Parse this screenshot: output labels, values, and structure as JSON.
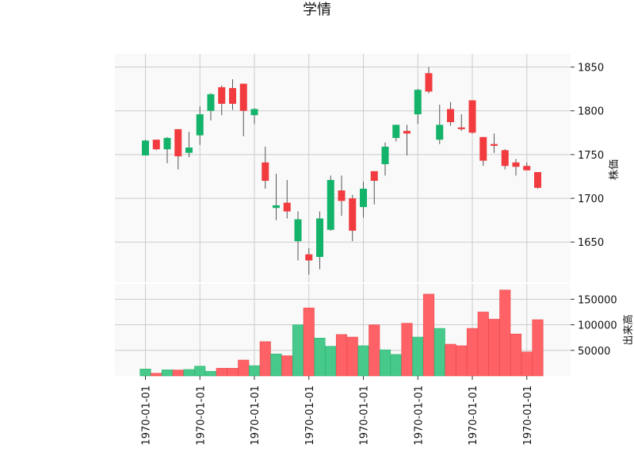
{
  "chart_data": {
    "type": "candlestick",
    "title": "学情",
    "price_ylabel": "株価",
    "volume_ylabel": "出来高",
    "up_color": "#13b36a",
    "down_color": "#f23b3f",
    "ohlc": [
      {
        "open": 1749,
        "high": 1767,
        "low": 1749,
        "close": 1766
      },
      {
        "open": 1767,
        "high": 1767,
        "low": 1755,
        "close": 1756
      },
      {
        "open": 1756,
        "high": 1770,
        "low": 1740,
        "close": 1769
      },
      {
        "open": 1779,
        "high": 1779,
        "low": 1733,
        "close": 1748
      },
      {
        "open": 1752,
        "high": 1776,
        "low": 1747,
        "close": 1758
      },
      {
        "open": 1772,
        "high": 1805,
        "low": 1761,
        "close": 1796
      },
      {
        "open": 1800,
        "high": 1820,
        "low": 1789,
        "close": 1819
      },
      {
        "open": 1827,
        "high": 1829,
        "low": 1795,
        "close": 1808
      },
      {
        "open": 1826,
        "high": 1836,
        "low": 1801,
        "close": 1808
      },
      {
        "open": 1831,
        "high": 1831,
        "low": 1771,
        "close": 1800
      },
      {
        "open": 1795,
        "high": 1803,
        "low": 1785,
        "close": 1802
      },
      {
        "open": 1741,
        "high": 1759,
        "low": 1711,
        "close": 1720
      },
      {
        "open": 1689,
        "high": 1728,
        "low": 1675,
        "close": 1692
      },
      {
        "open": 1695,
        "high": 1721,
        "low": 1677,
        "close": 1685
      },
      {
        "open": 1651,
        "high": 1685,
        "low": 1629,
        "close": 1676
      },
      {
        "open": 1636,
        "high": 1643,
        "low": 1613,
        "close": 1629
      },
      {
        "open": 1633,
        "high": 1685,
        "low": 1619,
        "close": 1677
      },
      {
        "open": 1664,
        "high": 1726,
        "low": 1663,
        "close": 1721
      },
      {
        "open": 1709,
        "high": 1726,
        "low": 1680,
        "close": 1697
      },
      {
        "open": 1700,
        "high": 1704,
        "low": 1651,
        "close": 1663
      },
      {
        "open": 1690,
        "high": 1719,
        "low": 1678,
        "close": 1711
      },
      {
        "open": 1731,
        "high": 1731,
        "low": 1693,
        "close": 1720
      },
      {
        "open": 1739,
        "high": 1764,
        "low": 1726,
        "close": 1759
      },
      {
        "open": 1769,
        "high": 1784,
        "low": 1765,
        "close": 1784
      },
      {
        "open": 1777,
        "high": 1784,
        "low": 1749,
        "close": 1774
      },
      {
        "open": 1796,
        "high": 1825,
        "low": 1785,
        "close": 1824
      },
      {
        "open": 1843,
        "high": 1850,
        "low": 1820,
        "close": 1822
      },
      {
        "open": 1767,
        "high": 1807,
        "low": 1762,
        "close": 1784
      },
      {
        "open": 1802,
        "high": 1810,
        "low": 1783,
        "close": 1787
      },
      {
        "open": 1781,
        "high": 1796,
        "low": 1777,
        "close": 1779
      },
      {
        "open": 1812,
        "high": 1812,
        "low": 1774,
        "close": 1775
      },
      {
        "open": 1770,
        "high": 1770,
        "low": 1737,
        "close": 1743
      },
      {
        "open": 1762,
        "high": 1774,
        "low": 1752,
        "close": 1760
      },
      {
        "open": 1755,
        "high": 1756,
        "low": 1733,
        "close": 1737
      },
      {
        "open": 1741,
        "high": 1745,
        "low": 1726,
        "close": 1736
      },
      {
        "open": 1737,
        "high": 1741,
        "low": 1732,
        "close": 1732
      },
      {
        "open": 1730,
        "high": 1730,
        "low": 1711,
        "close": 1712
      }
    ],
    "volume": [
      13500,
      5200,
      11800,
      11500,
      12500,
      19000,
      9000,
      15000,
      15000,
      31000,
      20000,
      67000,
      43000,
      39500,
      100000,
      133000,
      74000,
      58000,
      81000,
      76000,
      59000,
      100000,
      51000,
      42000,
      103000,
      76000,
      160000,
      93000,
      62000,
      59000,
      93000,
      125000,
      111000,
      168000,
      82000,
      47000,
      110000
    ],
    "x_tick_labels": [
      "1970-01-01",
      "1970-01-01",
      "1970-01-01",
      "1970-01-01",
      "1970-01-01",
      "1970-01-01",
      "1970-01-01",
      "1970-01-01"
    ],
    "x_tick_candle_index": [
      0,
      5,
      10,
      15,
      20,
      25,
      30,
      35
    ],
    "price_yticks": [
      1650,
      1700,
      1750,
      1800,
      1850
    ],
    "price_ylim": [
      1604,
      1865
    ],
    "volume_yticks": [
      50000,
      100000,
      150000
    ],
    "volume_ylim": [
      0,
      180000
    ],
    "grid": true
  }
}
